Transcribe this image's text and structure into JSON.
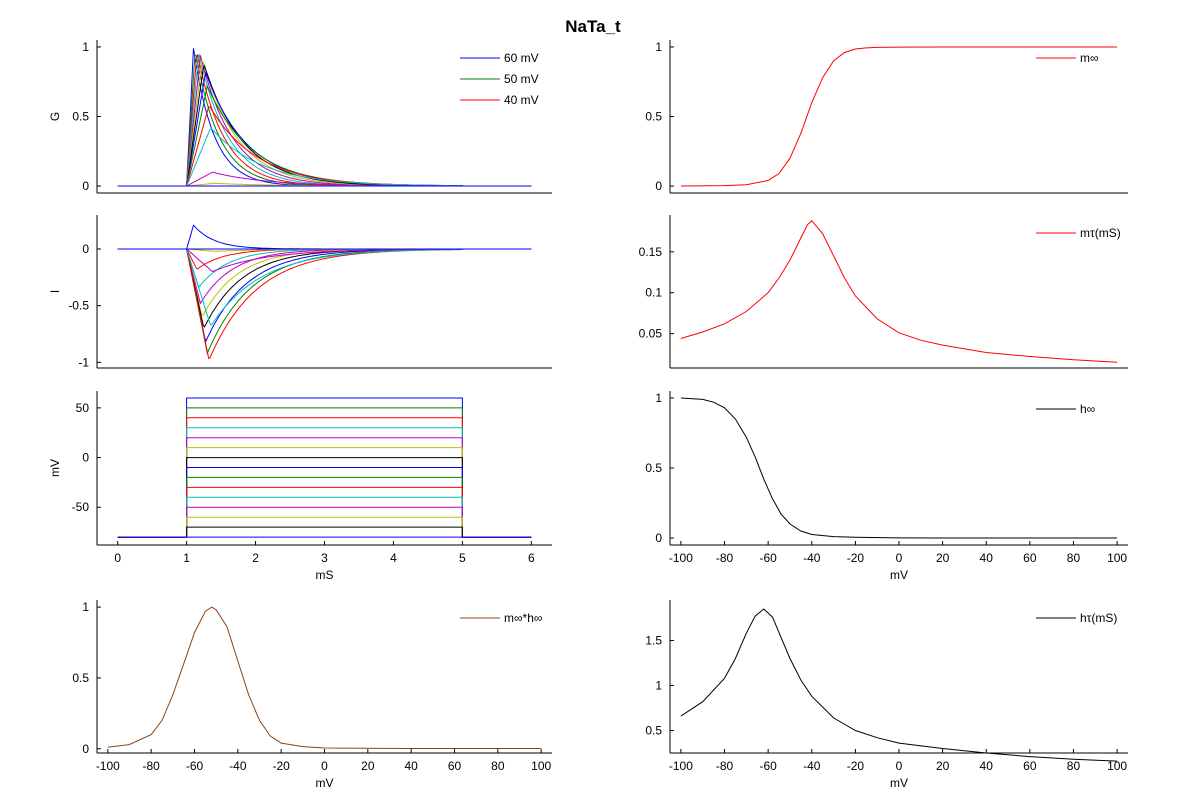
{
  "figure": {
    "title": "NaTa_t"
  },
  "colors": {
    "cycle": [
      "#0000ff",
      "#008000",
      "#ff0000",
      "#00bfbf",
      "#bf00bf",
      "#bfbf00",
      "#000000"
    ]
  },
  "chart_data": [
    {
      "id": "G",
      "type": "line",
      "ylabel": "G",
      "xlabel": "",
      "xlim": [
        -0.3,
        6.3
      ],
      "ylim": [
        -0.05,
        1.05
      ],
      "xticks": [],
      "yticks": [
        0,
        0.5,
        1
      ],
      "ytick_labels": [
        "0",
        "0.5",
        "1"
      ],
      "legend": {
        "location": "top-right",
        "entries": [
          {
            "name": "60 mV",
            "color": "#0000ff"
          },
          {
            "name": "50 mV",
            "color": "#008000"
          },
          {
            "name": "40 mV",
            "color": "#ff0000"
          }
        ]
      },
      "series_note": "family of 15 voltage-clamp steps; peak G per step",
      "steps_mV": [
        60,
        50,
        40,
        30,
        20,
        10,
        0,
        -10,
        -20,
        -30,
        -40,
        -50,
        -60,
        -70,
        -80
      ],
      "peak_values": [
        0.99,
        0.98,
        0.97,
        0.96,
        0.94,
        0.92,
        0.88,
        0.82,
        0.72,
        0.58,
        0.42,
        0.1,
        0.02,
        0.0,
        0.0
      ],
      "t_on": 1.0,
      "t_off": 5.0
    },
    {
      "id": "I",
      "type": "line",
      "ylabel": "I",
      "xlabel": "",
      "xlim": [
        -0.3,
        6.3
      ],
      "ylim": [
        -1.05,
        0.3
      ],
      "xticks": [],
      "yticks": [
        -1,
        -0.5,
        0
      ],
      "ytick_labels": [
        "-1",
        "-0.5",
        "0"
      ],
      "steps_mV": [
        60,
        50,
        40,
        30,
        20,
        10,
        0,
        -10,
        -20,
        -30,
        -40,
        -50,
        -60,
        -70,
        -80
      ],
      "peak_values": [
        0.21,
        0.0,
        -0.18,
        -0.34,
        -0.48,
        -0.6,
        -0.7,
        -0.82,
        -0.92,
        -0.98,
        -0.68,
        -0.2,
        -0.02,
        0.0,
        0.0
      ],
      "t_on": 1.0,
      "t_off": 5.0
    },
    {
      "id": "V",
      "type": "line",
      "ylabel": "mV",
      "xlabel": "mS",
      "xlim": [
        -0.3,
        6.3
      ],
      "ylim": [
        -88,
        67
      ],
      "xticks": [
        0,
        1,
        2,
        3,
        4,
        5,
        6
      ],
      "xtick_labels": [
        "0",
        "1",
        "2",
        "3",
        "4",
        "5",
        "6"
      ],
      "yticks": [
        -50,
        0,
        50
      ],
      "ytick_labels": [
        "-50",
        "0",
        "50"
      ],
      "holding_mV": -80,
      "steps_mV": [
        60,
        50,
        40,
        30,
        20,
        10,
        0,
        -10,
        -20,
        -30,
        -40,
        -50,
        -60,
        -70,
        -80
      ],
      "t_on": 1.0,
      "t_off": 5.0,
      "t_end": 6.0
    },
    {
      "id": "mh",
      "type": "line",
      "ylabel": "",
      "xlabel": "mV",
      "xlim": [
        -105,
        105
      ],
      "ylim": [
        -0.03,
        1.05
      ],
      "xticks": [
        -100,
        -80,
        -60,
        -40,
        -20,
        0,
        20,
        40,
        60,
        80,
        100
      ],
      "xtick_labels": [
        "-100",
        "-80",
        "-60",
        "-40",
        "-20",
        "0",
        "20",
        "40",
        "60",
        "80",
        "100"
      ],
      "yticks": [
        0,
        0.5,
        1
      ],
      "ytick_labels": [
        "0",
        "0.5",
        "1"
      ],
      "legend": {
        "location": "top-right",
        "entries": [
          {
            "name": "m∞*h∞",
            "color": "#8b4513"
          }
        ]
      },
      "x": [
        -100,
        -90,
        -80,
        -75,
        -70,
        -65,
        -60,
        -55,
        -52,
        -50,
        -45,
        -40,
        -35,
        -30,
        -25,
        -20,
        -10,
        0,
        20,
        40,
        60,
        80,
        100
      ],
      "values": [
        0.01,
        0.03,
        0.1,
        0.2,
        0.38,
        0.6,
        0.82,
        0.97,
        1.0,
        0.98,
        0.86,
        0.62,
        0.38,
        0.2,
        0.09,
        0.04,
        0.015,
        0.005,
        0.003,
        0.002,
        0.002,
        0.002,
        0.002
      ]
    },
    {
      "id": "minf",
      "type": "line",
      "ylabel": "",
      "xlabel": "",
      "xlim": [
        -105,
        105
      ],
      "ylim": [
        -0.05,
        1.05
      ],
      "xticks": [],
      "yticks": [
        0,
        0.5,
        1
      ],
      "ytick_labels": [
        "0",
        "0.5",
        "1"
      ],
      "legend": {
        "location": "top-right",
        "entries": [
          {
            "name": "m∞",
            "color": "#ff0000"
          }
        ]
      },
      "x": [
        -100,
        -80,
        -70,
        -60,
        -55,
        -50,
        -45,
        -40,
        -35,
        -30,
        -25,
        -20,
        -15,
        -10,
        0,
        20,
        40,
        60,
        80,
        100
      ],
      "values": [
        0.0,
        0.003,
        0.01,
        0.04,
        0.09,
        0.2,
        0.38,
        0.6,
        0.78,
        0.9,
        0.96,
        0.985,
        0.993,
        0.997,
        0.999,
        1.0,
        1.0,
        1.0,
        1.0,
        1.0
      ]
    },
    {
      "id": "mtau",
      "type": "line",
      "ylabel": "",
      "xlabel": "",
      "xlim": [
        -105,
        105
      ],
      "ylim": [
        0.008,
        0.195
      ],
      "xticks": [],
      "yticks": [
        0.05,
        0.1,
        0.15
      ],
      "ytick_labels": [
        "0.05",
        "0.1",
        "0.15"
      ],
      "legend": {
        "location": "top-right",
        "entries": [
          {
            "name": "mτ(mS)",
            "color": "#ff0000"
          }
        ]
      },
      "x": [
        -100,
        -90,
        -80,
        -70,
        -60,
        -55,
        -50,
        -45,
        -42,
        -40,
        -35,
        -30,
        -25,
        -20,
        -10,
        0,
        10,
        20,
        40,
        60,
        80,
        100
      ],
      "values": [
        0.044,
        0.052,
        0.062,
        0.077,
        0.1,
        0.118,
        0.14,
        0.167,
        0.183,
        0.188,
        0.172,
        0.145,
        0.118,
        0.096,
        0.068,
        0.051,
        0.042,
        0.036,
        0.027,
        0.022,
        0.018,
        0.015
      ]
    },
    {
      "id": "hinf",
      "type": "line",
      "ylabel": "",
      "xlabel": "mV",
      "xlim": [
        -105,
        105
      ],
      "ylim": [
        -0.05,
        1.05
      ],
      "xticks": [
        -100,
        -80,
        -60,
        -40,
        -20,
        0,
        20,
        40,
        60,
        80,
        100
      ],
      "xtick_labels": [
        "-100",
        "-80",
        "-60",
        "-40",
        "-20",
        "0",
        "20",
        "40",
        "60",
        "80",
        "100"
      ],
      "yticks": [
        0,
        0.5,
        1
      ],
      "ytick_labels": [
        "0",
        "0.5",
        "1"
      ],
      "legend": {
        "location": "top-right",
        "entries": [
          {
            "name": "h∞",
            "color": "#000000"
          }
        ]
      },
      "x": [
        -100,
        -90,
        -85,
        -80,
        -75,
        -70,
        -66,
        -62,
        -58,
        -54,
        -50,
        -45,
        -40,
        -30,
        -20,
        0,
        20,
        40,
        60,
        80,
        100
      ],
      "values": [
        1.0,
        0.99,
        0.97,
        0.93,
        0.85,
        0.72,
        0.58,
        0.42,
        0.28,
        0.17,
        0.1,
        0.05,
        0.025,
        0.01,
        0.005,
        0.001,
        0.0,
        0.0,
        0.0,
        0.0,
        0.0
      ]
    },
    {
      "id": "htau",
      "type": "line",
      "ylabel": "",
      "xlabel": "mV",
      "xlim": [
        -105,
        105
      ],
      "ylim": [
        0.25,
        1.95
      ],
      "xticks": [
        -100,
        -80,
        -60,
        -40,
        -20,
        0,
        20,
        40,
        60,
        80,
        100
      ],
      "xtick_labels": [
        "-100",
        "-80",
        "-60",
        "-40",
        "-20",
        "0",
        "20",
        "40",
        "60",
        "80",
        "100"
      ],
      "yticks": [
        0.5,
        1,
        1.5
      ],
      "ytick_labels": [
        "0.5",
        "1",
        "1.5"
      ],
      "legend": {
        "location": "top-right",
        "entries": [
          {
            "name": "hτ(mS)",
            "color": "#000000"
          }
        ]
      },
      "x": [
        -100,
        -90,
        -80,
        -75,
        -70,
        -66,
        -62,
        -58,
        -54,
        -50,
        -45,
        -40,
        -30,
        -20,
        -10,
        0,
        20,
        40,
        60,
        80,
        100
      ],
      "values": [
        0.66,
        0.82,
        1.08,
        1.3,
        1.58,
        1.77,
        1.85,
        1.76,
        1.53,
        1.3,
        1.06,
        0.88,
        0.64,
        0.5,
        0.42,
        0.36,
        0.3,
        0.25,
        0.21,
        0.18,
        0.16
      ]
    }
  ]
}
